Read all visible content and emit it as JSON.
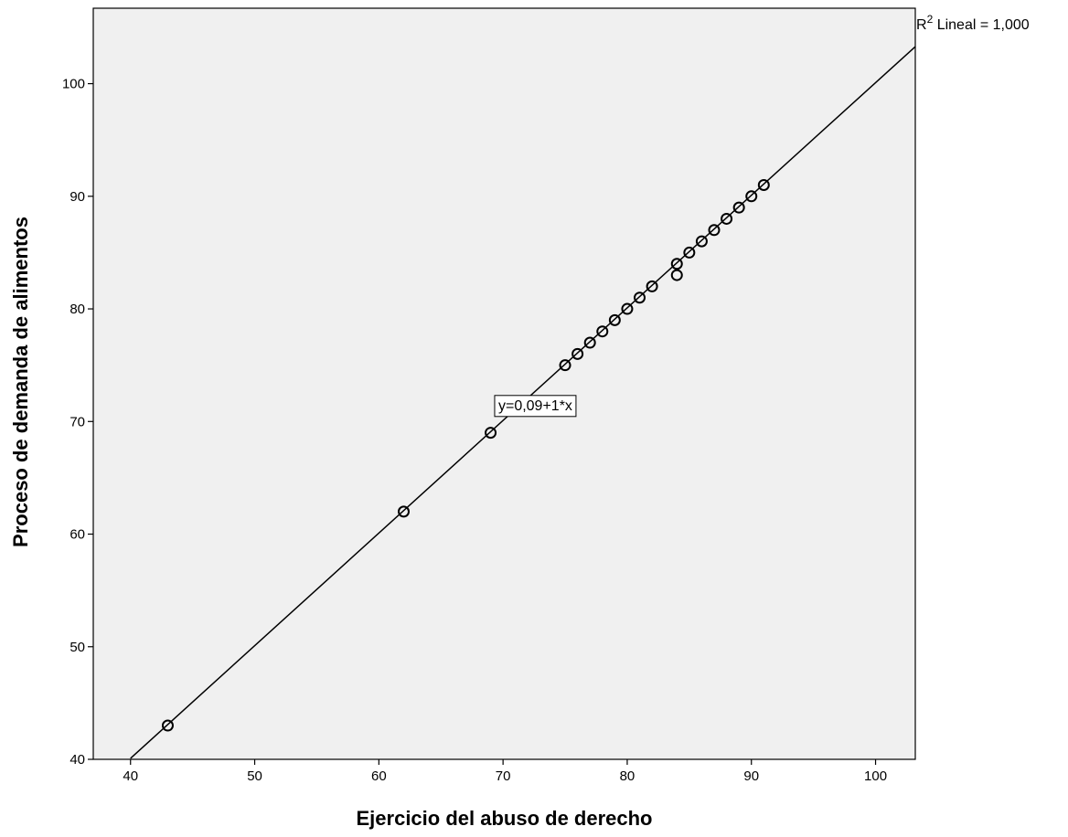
{
  "chart_data": {
    "type": "scatter",
    "title": "",
    "xlabel": "Ejercicio del abuso de derecho",
    "ylabel": "Proceso de demanda de alimentos",
    "xlim": [
      37,
      103.2
    ],
    "ylim": [
      40,
      106.7
    ],
    "x_ticks": [
      40,
      50,
      60,
      70,
      80,
      90,
      100
    ],
    "y_ticks": [
      40,
      50,
      60,
      70,
      80,
      90,
      100
    ],
    "grid": false,
    "background_color": "#f0f0f0",
    "points": [
      {
        "x": 43,
        "y": 43
      },
      {
        "x": 62,
        "y": 62
      },
      {
        "x": 69,
        "y": 69
      },
      {
        "x": 75,
        "y": 75
      },
      {
        "x": 76,
        "y": 76
      },
      {
        "x": 77,
        "y": 77
      },
      {
        "x": 78,
        "y": 78
      },
      {
        "x": 79,
        "y": 79
      },
      {
        "x": 80,
        "y": 80
      },
      {
        "x": 81,
        "y": 81
      },
      {
        "x": 82,
        "y": 82
      },
      {
        "x": 84,
        "y": 83
      },
      {
        "x": 84,
        "y": 84
      },
      {
        "x": 85,
        "y": 85
      },
      {
        "x": 86,
        "y": 86
      },
      {
        "x": 87,
        "y": 87
      },
      {
        "x": 88,
        "y": 88
      },
      {
        "x": 89,
        "y": 89
      },
      {
        "x": 90,
        "y": 90
      },
      {
        "x": 91,
        "y": 91
      }
    ],
    "fit_line": {
      "intercept": 0.09,
      "slope": 1,
      "x_from": 40,
      "x_to": 103.2
    },
    "equation_label": "y=0,09+1*x",
    "equation_anchor": {
      "x": 72.6,
      "y": 71.5
    },
    "r2_label": {
      "base": "R",
      "sup": "2",
      "text": " Lineal = 1,000"
    }
  }
}
